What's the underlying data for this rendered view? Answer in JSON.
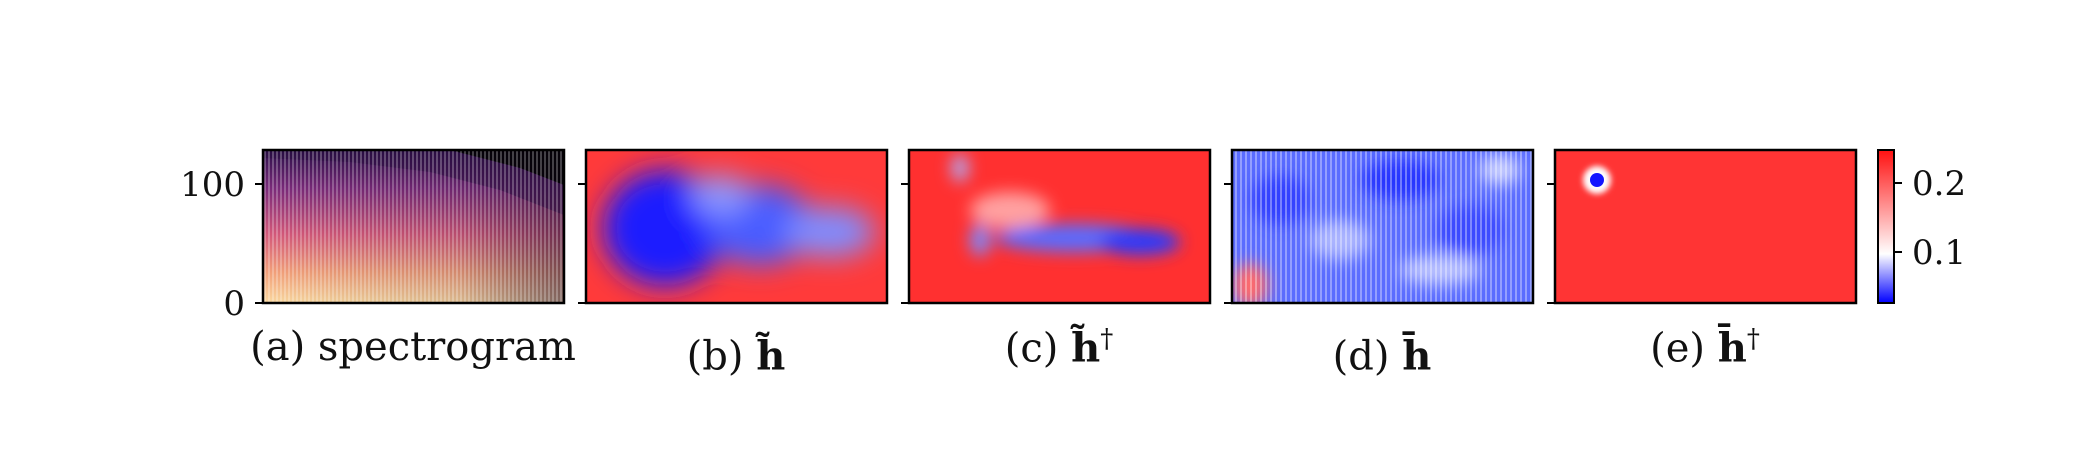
{
  "chart_data": [
    {
      "type": "heatmap",
      "panel": "a",
      "caption_label": "(a)",
      "caption_text": "spectrogram",
      "ylim": [
        0,
        128
      ],
      "yticks": [
        "0",
        "100"
      ],
      "yticks_values": [
        0,
        100
      ],
      "colormap": "magma"
    },
    {
      "type": "heatmap",
      "panel": "b",
      "caption_label": "(b)",
      "caption_symbol": "h̃",
      "caption_sup": "",
      "colormap": "bwr",
      "dominant": "blue blob left-centre over red background"
    },
    {
      "type": "heatmap",
      "panel": "c",
      "caption_label": "(c)",
      "caption_symbol": "h̃",
      "caption_sup": "†",
      "colormap": "bwr",
      "dominant": "red background with blue horizontal band lower-centre"
    },
    {
      "type": "heatmap",
      "panel": "d",
      "caption_label": "(d)",
      "caption_symbol": "h̄",
      "caption_sup": "",
      "colormap": "bwr",
      "dominant": "mostly blue/white streaked texture"
    },
    {
      "type": "heatmap",
      "panel": "e",
      "caption_label": "(e)",
      "caption_symbol": "h̄",
      "caption_sup": "†",
      "colormap": "bwr",
      "dominant": "uniform red with small blue dot near top-left"
    }
  ],
  "colorbar": {
    "ticks": [
      "0.1",
      "0.2"
    ],
    "tick_values": [
      0.1,
      0.2
    ],
    "range": [
      0.03,
      0.25
    ],
    "colors": {
      "low": "#0000ff",
      "mid": "#ffffff",
      "high": "#ff0000"
    }
  }
}
